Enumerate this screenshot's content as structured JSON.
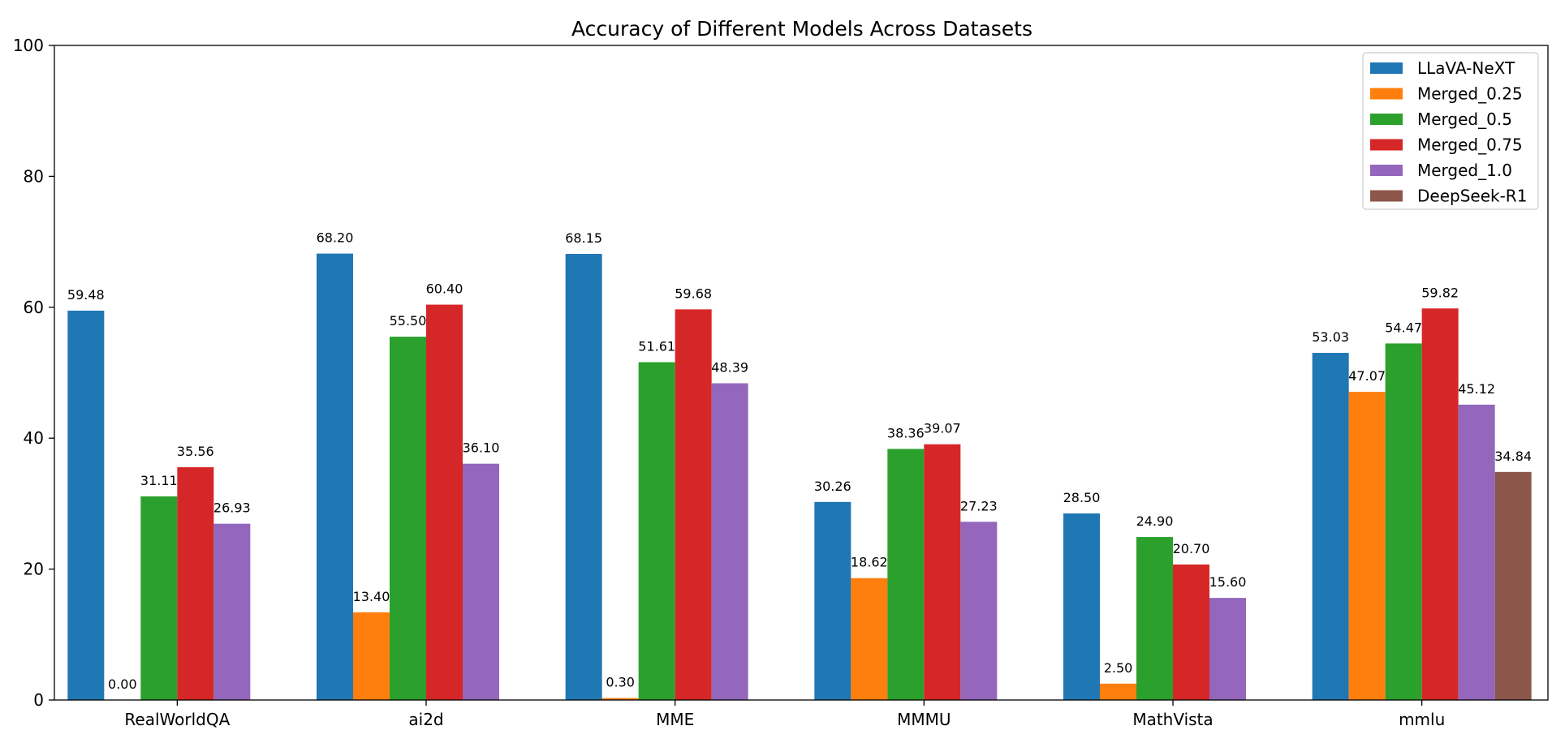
{
  "chart_data": {
    "type": "bar",
    "title": "Accuracy of Different Models Across Datasets",
    "xlabel": "",
    "ylabel": "",
    "ylim": [
      0,
      100
    ],
    "yticks": [
      0,
      20,
      40,
      60,
      80,
      100
    ],
    "grid": false,
    "legend_position": "top-right",
    "categories": [
      "RealWorldQA",
      "ai2d",
      "MME",
      "MMMU",
      "MathVista",
      "mmlu"
    ],
    "series": [
      {
        "name": "LLaVA-NeXT",
        "color": "#1f77b4",
        "values": [
          59.48,
          68.2,
          68.15,
          30.26,
          28.5,
          53.03
        ],
        "labels": [
          "59.48",
          "68.20",
          "68.15",
          "30.26",
          "28.50",
          "53.03"
        ]
      },
      {
        "name": "Merged_0.25",
        "color": "#ff7f0e",
        "values": [
          0.0,
          13.4,
          0.3,
          18.62,
          2.5,
          47.07
        ],
        "labels": [
          "0.00",
          "13.40",
          "0.30",
          "18.62",
          "2.50",
          "47.07"
        ]
      },
      {
        "name": "Merged_0.5",
        "color": "#2ca02c",
        "values": [
          31.11,
          55.5,
          51.61,
          38.36,
          24.9,
          54.47
        ],
        "labels": [
          "31.11",
          "55.50",
          "51.61",
          "38.36",
          "24.90",
          "54.47"
        ]
      },
      {
        "name": "Merged_0.75",
        "color": "#d62728",
        "values": [
          35.56,
          60.4,
          59.68,
          39.07,
          20.7,
          59.82
        ],
        "labels": [
          "35.56",
          "60.40",
          "59.68",
          "39.07",
          "20.70",
          "59.82"
        ]
      },
      {
        "name": "Merged_1.0",
        "color": "#9467bd",
        "values": [
          26.93,
          36.1,
          48.39,
          27.23,
          15.6,
          45.12
        ],
        "labels": [
          "26.93",
          "36.10",
          "48.39",
          "27.23",
          "15.60",
          "45.12"
        ]
      },
      {
        "name": "DeepSeek-R1",
        "color": "#8c564b",
        "values": [
          null,
          null,
          null,
          null,
          null,
          34.84
        ],
        "labels": [
          null,
          null,
          null,
          null,
          null,
          "34.84"
        ]
      }
    ]
  }
}
